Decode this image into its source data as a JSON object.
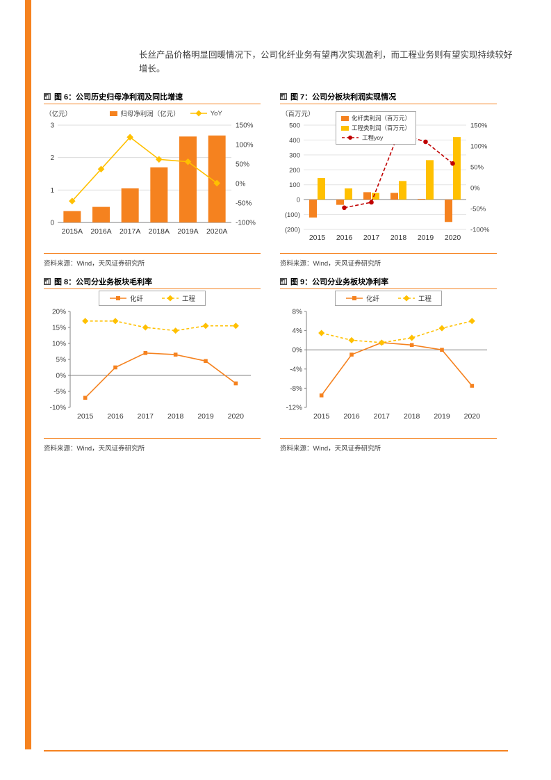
{
  "page": {
    "intro_text": "长丝产品价格明显回暖情况下，公司化纤业务有望再次实现盈利，而工程业务则有望实现持续较好增长。",
    "accent_color": "#F5821F"
  },
  "chart_data": [
    {
      "id": "fig6",
      "type": "bar",
      "title": "图 6：公司历史归母净利润及同比增速",
      "unit_label": "（亿元）",
      "categories": [
        "2015A",
        "2016A",
        "2017A",
        "2018A",
        "2019A",
        "2020A"
      ],
      "bar_series": {
        "name": "归母净利润（亿元）",
        "color": "#F5821F",
        "values": [
          0.35,
          0.48,
          1.05,
          1.7,
          2.65,
          2.68
        ]
      },
      "line_series": {
        "name": "YoY",
        "color": "#FFC000",
        "axis": "right",
        "values": [
          -45,
          37,
          119,
          62,
          56,
          1
        ]
      },
      "left_axis": {
        "min": 0,
        "max": 3,
        "step": 1
      },
      "right_axis": {
        "min": -100,
        "max": 150,
        "step": 50,
        "suffix": "%"
      },
      "grid": true,
      "legend_position": "top",
      "source": "资料来源：Wind，天风证券研究所"
    },
    {
      "id": "fig7",
      "type": "bar",
      "title": "图 7：公司分板块利润实现情况",
      "unit_label": "（百万元）",
      "categories": [
        "2015",
        "2016",
        "2017",
        "2018",
        "2019",
        "2020"
      ],
      "bar_series": [
        {
          "name": "化纤类利润（百万元）",
          "color": "#F5821F",
          "values": [
            -120,
            -35,
            50,
            45,
            5,
            -150
          ]
        },
        {
          "name": "工程类利润（百万元）",
          "color": "#FFC000",
          "values": [
            145,
            75,
            45,
            125,
            265,
            420
          ]
        }
      ],
      "line_series": {
        "name": "工程yoy",
        "color": "#C00000",
        "style": "dashed",
        "axis": "right",
        "values": [
          null,
          -48,
          -35,
          130,
          110,
          58
        ]
      },
      "left_axis": {
        "min": -200,
        "max": 500,
        "step": 100,
        "negative_format": "parentheses"
      },
      "right_axis": {
        "min": -100,
        "max": 150,
        "step": 50,
        "suffix": "%"
      },
      "grid": true,
      "legend_position": "top-inside-box",
      "source": "资料来源：Wind，天风证券研究所"
    },
    {
      "id": "fig8",
      "type": "line",
      "title": "图 8：公司分业务板块毛利率",
      "categories": [
        "2015",
        "2016",
        "2017",
        "2018",
        "2019",
        "2020"
      ],
      "series": [
        {
          "name": "化纤",
          "color": "#F5821F",
          "style": "solid",
          "marker": "square",
          "values": [
            -7,
            2.5,
            7,
            6.5,
            4.5,
            -2.5
          ]
        },
        {
          "name": "工程",
          "color": "#FFC000",
          "style": "dashed",
          "marker": "diamond",
          "values": [
            17,
            17,
            15,
            14,
            15.5,
            15.5
          ]
        }
      ],
      "y_axis": {
        "min": -10,
        "max": 20,
        "step": 5,
        "suffix": "%"
      },
      "grid": false,
      "legend_position": "top-box",
      "source": "资料来源：Wind，天风证券研究所"
    },
    {
      "id": "fig9",
      "type": "line",
      "title": "图 9：公司分业务板块净利率",
      "categories": [
        "2015",
        "2016",
        "2017",
        "2018",
        "2019",
        "2020"
      ],
      "series": [
        {
          "name": "化纤",
          "color": "#F5821F",
          "style": "solid",
          "marker": "square",
          "values": [
            -9.5,
            -1,
            1.5,
            1,
            0,
            -7.5
          ]
        },
        {
          "name": "工程",
          "color": "#FFC000",
          "style": "dashed",
          "marker": "diamond",
          "values": [
            3.5,
            2,
            1.5,
            2.5,
            4.5,
            6
          ]
        }
      ],
      "y_axis": {
        "min": -12,
        "max": 8,
        "step": 4,
        "suffix": "%"
      },
      "grid": false,
      "legend_position": "top-box",
      "source": "资料来源：Wind，天风证券研究所"
    }
  ]
}
